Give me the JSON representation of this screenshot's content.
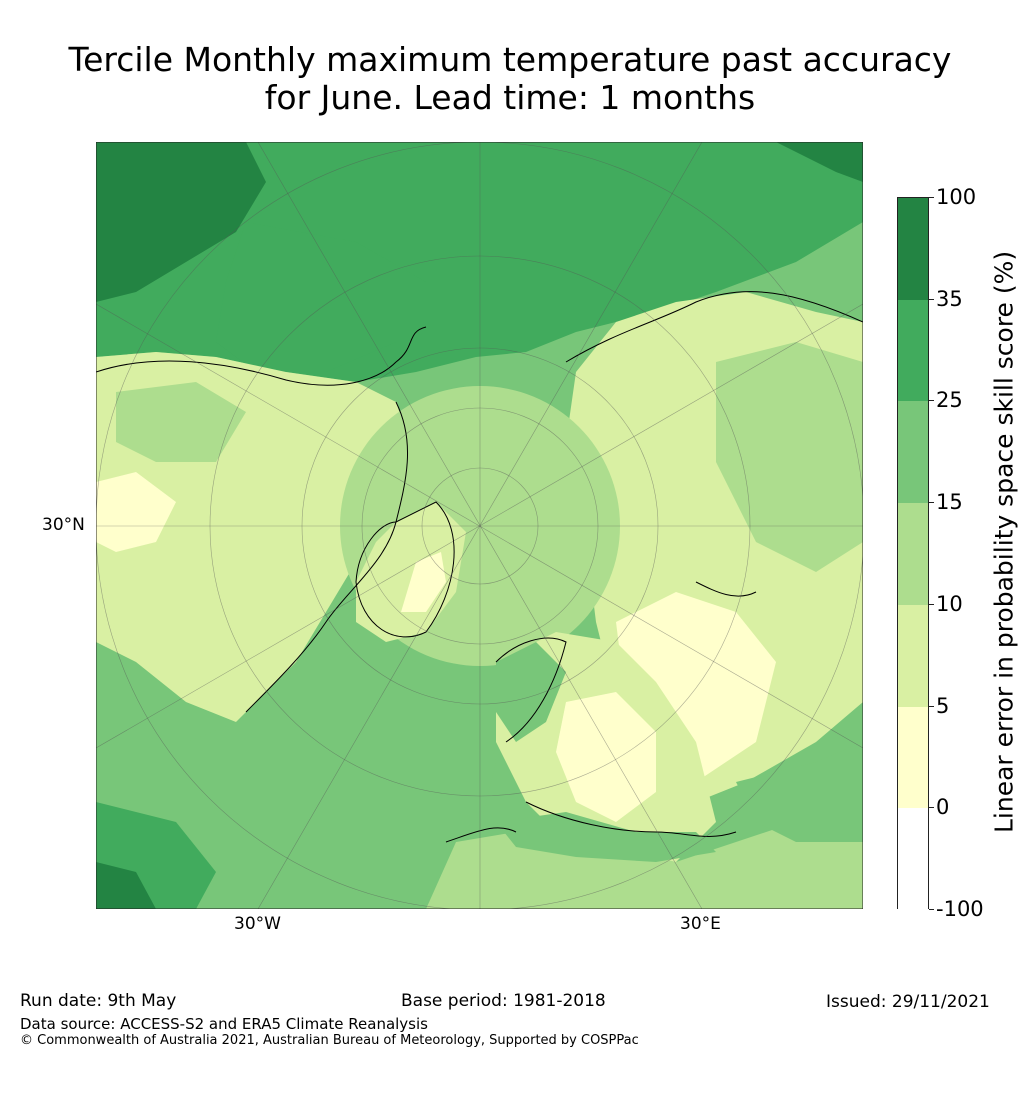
{
  "title": {
    "line1": "Tercile Monthly maximum temperature past accuracy",
    "line2": "for June. Lead time: 1 months"
  },
  "map": {
    "projection": "polar-stereographic",
    "region": "northern-hemisphere",
    "labels": {
      "lat_30n": "30°N",
      "lon_30w": "30°W",
      "lon_30e": "30°E"
    },
    "colors": {
      "ocean_north_pacific": "#3f9e55",
      "land_default": "#d9efa3",
      "arctic": "#a9d98d",
      "atlantic": "#77c374",
      "land_high_skill": "#a9d98d",
      "land_low_skill": "#ffffcc"
    }
  },
  "colorbar": {
    "label": "Linear error in probability space skill score (%)",
    "ticks": [
      "100",
      "35",
      "25",
      "15",
      "10",
      "5",
      "0",
      "-100"
    ],
    "colors": [
      "#238443",
      "#41ab5d",
      "#78c679",
      "#addd8e",
      "#d9f0a3",
      "#ffffcc",
      "#ffffff"
    ]
  },
  "footer": {
    "run_date": "Run date: 9th May",
    "base_period": "Base period: 1981-2018",
    "issued": "Issued: 29/11/2021",
    "data_source": "Data source: ACCESS-S2 and ERA5 Climate Reanalysis",
    "copyright": "© Commonwealth of Australia 2021, Australian Bureau of Meteorology, Supported by COSPPac"
  }
}
